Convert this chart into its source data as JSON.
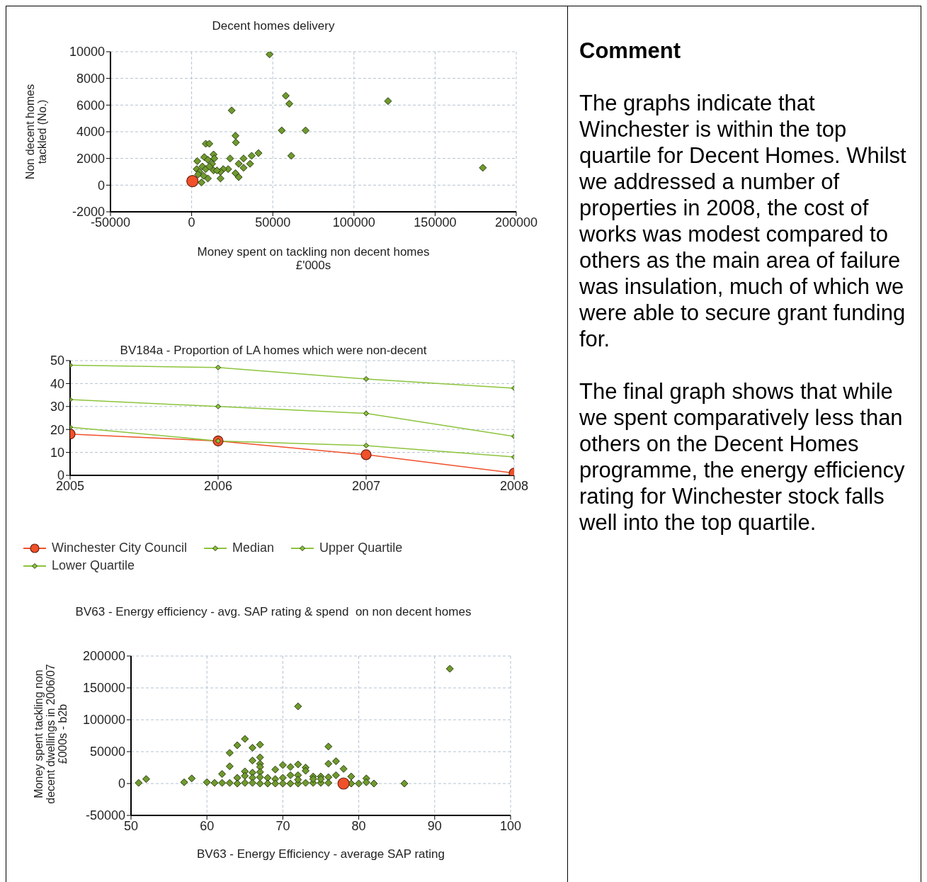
{
  "chart_data": [
    {
      "type": "scatter",
      "title": "Decent homes delivery",
      "xlabel": "Money spent on tackling non decent homes £'000s",
      "ylabel": "Non decent homes tackled (No.)",
      "xlim": [
        -50000,
        200000
      ],
      "xticks": [
        -50000,
        0,
        50000,
        100000,
        150000,
        200000
      ],
      "ylim": [
        -2000,
        10000
      ],
      "yticks": [
        -2000,
        0,
        2000,
        4000,
        6000,
        8000,
        10000
      ],
      "grid": true,
      "series": [
        {
          "color": "#6f9a2e",
          "marker": "diamond",
          "x": [
            48000,
            58000,
            60200,
            24700,
            121000,
            55500,
            70200,
            61400,
            179400,
            27000,
            27300,
            8700,
            10900,
            41200,
            37000,
            32000,
            23700,
            29000,
            36000,
            32000,
            27000,
            29000,
            22500,
            19500,
            17800,
            17800,
            13500,
            14000,
            7800,
            3500,
            10000,
            12600,
            6600,
            8700,
            3100,
            4800,
            10000,
            6100,
            13500,
            15600,
            10900,
            4000,
            7400
          ],
          "values": [
            9800,
            6700,
            6100,
            5600,
            6300,
            4100,
            4100,
            2200,
            1300,
            3700,
            3200,
            3100,
            3100,
            2400,
            2200,
            2000,
            2000,
            1600,
            1600,
            1300,
            900,
            600,
            1200,
            1200,
            1000,
            500,
            2300,
            2000,
            2100,
            1800,
            1900,
            1600,
            1400,
            1200,
            1200,
            1000,
            500,
            200,
            1100,
            1100,
            1400,
            800,
            700
          ]
        },
        {
          "color": "#f0502a",
          "marker": "circle",
          "x": [
            500
          ],
          "values": [
            300
          ]
        }
      ]
    },
    {
      "type": "line",
      "title": "BV184a - Proportion of LA homes which were non-decent",
      "x": [
        2005,
        2006,
        2007,
        2008
      ],
      "xlim": [
        2005,
        2008
      ],
      "xticks": [
        2005,
        2006,
        2007,
        2008
      ],
      "ylim": [
        0,
        50
      ],
      "yticks": [
        0,
        10,
        20,
        30,
        40,
        50
      ],
      "grid": true,
      "legend": "bottom",
      "series": [
        {
          "name": "Winchester City Council",
          "color": "#f0502a",
          "marker": "circle",
          "values": [
            18,
            15,
            9,
            1
          ]
        },
        {
          "name": "Median",
          "color": "#8cc43c",
          "marker": "diamond",
          "values": [
            33,
            30,
            27,
            17
          ]
        },
        {
          "name": "Upper Quartile",
          "color": "#8cc43c",
          "marker": "diamond",
          "values": [
            48,
            47,
            42,
            38
          ]
        },
        {
          "name": "Lower Quartile",
          "color": "#8cc43c",
          "marker": "diamond",
          "values": [
            21,
            15,
            13,
            8
          ]
        }
      ]
    },
    {
      "type": "scatter",
      "title": "BV63 - Energy efficiency - avg. SAP rating & spend  on non decent homes",
      "xlabel": "BV63 - Energy Efficiency - average SAP rating",
      "ylabel": "Money spent tackling non decent dwellings in 2006/07 £000s - b2b",
      "xlim": [
        50,
        100
      ],
      "xticks": [
        50,
        60,
        70,
        80,
        90,
        100
      ],
      "ylim": [
        -50000,
        200000
      ],
      "yticks": [
        -50000,
        0,
        50000,
        100000,
        150000,
        200000
      ],
      "grid": true,
      "series": [
        {
          "color": "#6f9a2e",
          "marker": "diamond",
          "x": [
            92,
            72,
            65,
            64,
            66,
            67,
            63,
            76,
            76,
            77,
            78,
            63,
            66,
            67,
            67,
            67,
            70,
            71,
            72,
            73,
            73,
            69,
            62,
            65,
            65,
            66,
            66,
            67,
            67,
            64,
            68,
            69,
            70,
            71,
            72,
            74,
            75,
            76,
            77,
            79,
            81,
            51,
            52,
            57,
            58,
            60,
            61,
            62,
            63,
            64,
            65,
            66,
            67,
            68,
            69,
            70,
            71,
            72,
            73,
            74,
            75,
            76,
            79,
            80,
            81,
            82,
            86,
            72,
            74,
            75
          ],
          "values": [
            180000,
            121000,
            70000,
            60000,
            56000,
            61000,
            48000,
            58000,
            31000,
            35000,
            23000,
            27000,
            36000,
            41000,
            31000,
            26000,
            29000,
            26000,
            30000,
            25000,
            20000,
            22000,
            15000,
            19000,
            12000,
            17000,
            9000,
            18000,
            10000,
            9000,
            9000,
            7000,
            9000,
            13000,
            13000,
            11000,
            11000,
            10000,
            13000,
            11000,
            8000,
            1000,
            7000,
            2000,
            8000,
            2000,
            1000,
            1000,
            1000,
            0,
            1000,
            1000,
            0,
            0,
            0,
            0,
            0,
            0,
            1000,
            1000,
            1000,
            1000,
            0,
            0,
            2000,
            0,
            0,
            6000,
            7000,
            7000
          ]
        },
        {
          "color": "#f0502a",
          "marker": "circle",
          "x": [
            78
          ],
          "values": [
            0
          ]
        }
      ]
    },
    {
      "type": "other",
      "title": "Comment",
      "annotations": [
        "The graphs indicate that Winchester is within the top quartile for Decent Homes. Whilst we addressed a number of properties in 2008, the cost of works was modest compared to others as the main area of failure was insulation, much of which we were able to secure grant funding for.",
        "The final graph shows that while we spent comparatively less than others on the Decent Homes programme, the energy efficiency rating for Winchester stock falls well into the top quartile."
      ]
    }
  ]
}
